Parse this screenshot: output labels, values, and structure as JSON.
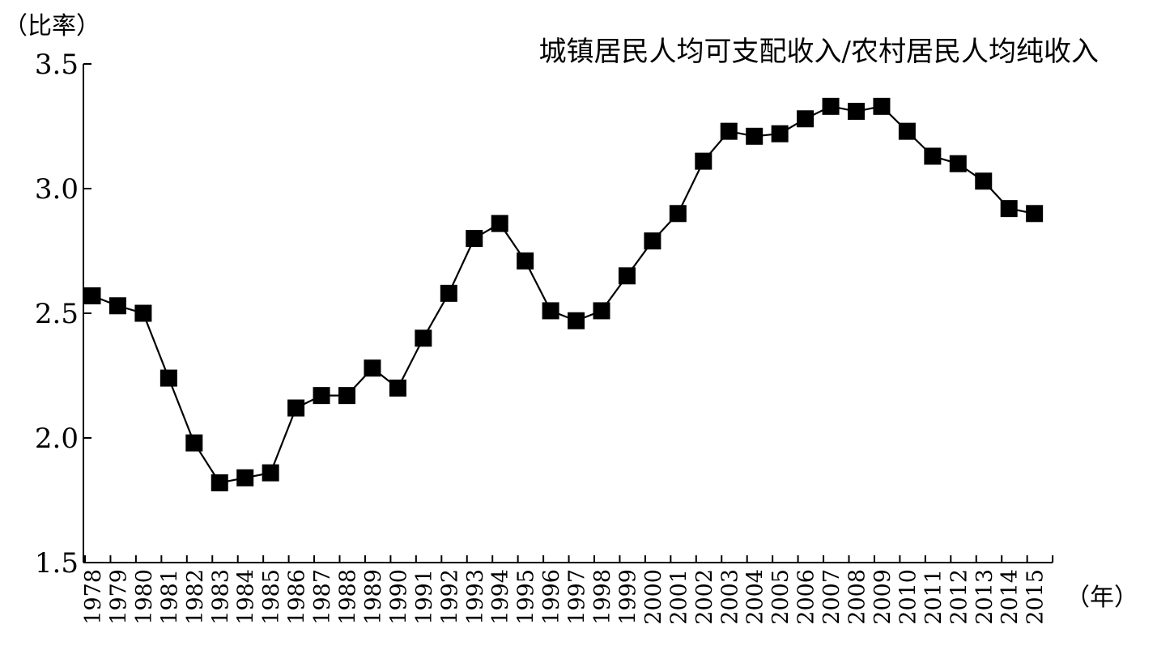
{
  "chart_data": {
    "type": "line",
    "title": "城镇居民人均可支配收入/农村居民人均纯收入",
    "ylabel": "（比率）",
    "xlabel": "（年）",
    "ylim": [
      1.5,
      3.5
    ],
    "yticks": [
      1.5,
      2.0,
      2.5,
      3.0,
      3.5
    ],
    "ytick_labels": [
      "1.5",
      "2.0",
      "2.5",
      "3.0",
      "3.5"
    ],
    "grid": false,
    "legend": "none",
    "marker": "square",
    "line_color": "#000000",
    "categories": [
      "1978",
      "1979",
      "1980",
      "1981",
      "1982",
      "1983",
      "1984",
      "1985",
      "1986",
      "1987",
      "1988",
      "1989",
      "1990",
      "1991",
      "1992",
      "1993",
      "1994",
      "1995",
      "1996",
      "1997",
      "1998",
      "1999",
      "2000",
      "2001",
      "2002",
      "2003",
      "2004",
      "2005",
      "2006",
      "2007",
      "2008",
      "2009",
      "2010",
      "2011",
      "2012",
      "2013",
      "2014",
      "2015"
    ],
    "values": [
      2.57,
      2.53,
      2.5,
      2.24,
      1.98,
      1.82,
      1.84,
      1.86,
      2.12,
      2.17,
      2.17,
      2.28,
      2.2,
      2.4,
      2.58,
      2.8,
      2.86,
      2.71,
      2.51,
      2.47,
      2.51,
      2.65,
      2.79,
      2.9,
      3.11,
      3.23,
      3.21,
      3.22,
      3.28,
      3.33,
      3.31,
      3.33,
      3.23,
      3.13,
      3.1,
      3.03,
      2.92,
      2.9
    ]
  }
}
